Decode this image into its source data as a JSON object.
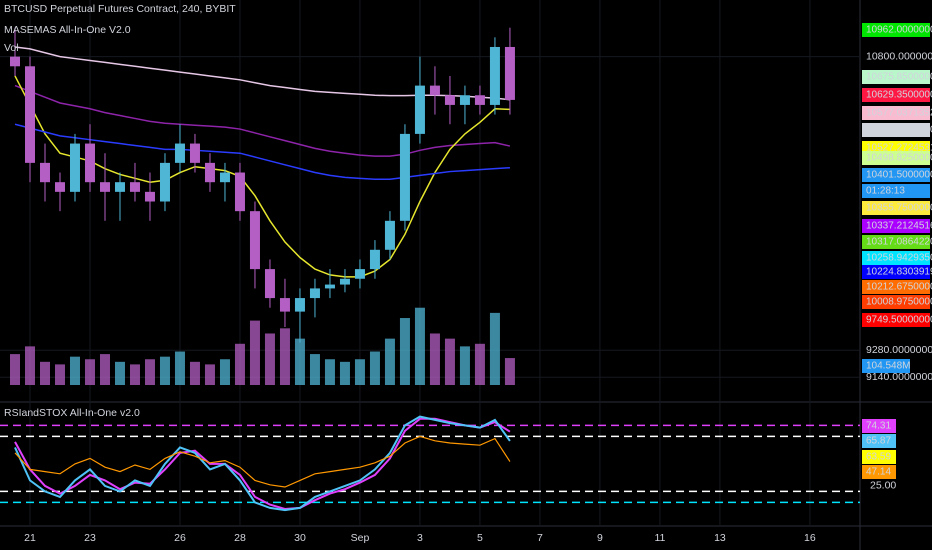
{
  "chart_data": [
    {
      "type": "candlestick",
      "title": "BTCUSD Perpetual Futures Contract, 240, BYBIT",
      "subtitle": "MASEMAS All-In-One V2.0",
      "x": [
        20.5,
        21,
        21.5,
        22,
        22.5,
        23,
        23.5,
        24,
        24.5,
        25,
        25.5,
        26,
        26.5,
        27,
        27.5,
        28,
        28.5,
        29,
        29.5,
        30,
        30.5,
        31,
        31.5,
        32,
        32.5,
        33,
        33.5,
        34,
        34.5,
        35,
        35.5,
        36,
        36.5,
        37
      ],
      "open": [
        10800,
        10750,
        10250,
        10150,
        10100,
        10350,
        10150,
        10100,
        10150,
        10100,
        10050,
        10250,
        10350,
        10250,
        10150,
        10200,
        10000,
        9700,
        9550,
        9480,
        9550,
        9600,
        9620,
        9650,
        9700,
        9800,
        9950,
        10400,
        10650,
        10600,
        10550,
        10600,
        10550,
        10850
      ],
      "high": [
        10950,
        10800,
        10350,
        10200,
        10400,
        10450,
        10300,
        10200,
        10250,
        10200,
        10300,
        10450,
        10400,
        10300,
        10250,
        10250,
        10050,
        9750,
        9650,
        9600,
        9650,
        9700,
        9700,
        9750,
        9850,
        10000,
        10450,
        10800,
        10750,
        10700,
        10650,
        10650,
        10900,
        10950
      ],
      "low": [
        10700,
        10150,
        10050,
        10000,
        10050,
        10100,
        9950,
        9950,
        10050,
        9950,
        10000,
        10200,
        10200,
        10100,
        10050,
        9950,
        9600,
        9500,
        9400,
        9320,
        9450,
        9550,
        9580,
        9600,
        9650,
        9750,
        9900,
        10350,
        10500,
        10450,
        10450,
        10500,
        10500,
        10500
      ],
      "close": [
        10750,
        10250,
        10150,
        10100,
        10350,
        10150,
        10100,
        10150,
        10100,
        10050,
        10250,
        10350,
        10250,
        10150,
        10200,
        10000,
        9700,
        9550,
        9480,
        9550,
        9600,
        9620,
        9650,
        9700,
        9800,
        9950,
        10400,
        10650,
        10600,
        10550,
        10600,
        10550,
        10850,
        10576
      ],
      "up_color": "#4fb6d6",
      "down_color": "#b45fc4",
      "series": [
        {
          "color": "#e6c7e6",
          "values": [
            10850,
            10840,
            10820,
            10800,
            10790,
            10780,
            10770,
            10760,
            10750,
            10740,
            10730,
            10720,
            10710,
            10700,
            10690,
            10680,
            10665,
            10650,
            10640,
            10630,
            10620,
            10615,
            10610,
            10605,
            10600,
            10598,
            10598,
            10600,
            10600,
            10598,
            10595,
            10590,
            10585,
            10577
          ]
        },
        {
          "color": "#8e24aa",
          "values": [
            10650,
            10620,
            10590,
            10560,
            10545,
            10530,
            10510,
            10495,
            10480,
            10465,
            10455,
            10450,
            10445,
            10440,
            10435,
            10425,
            10405,
            10385,
            10365,
            10345,
            10325,
            10310,
            10300,
            10290,
            10285,
            10285,
            10295,
            10315,
            10330,
            10340,
            10345,
            10350,
            10355,
            10337
          ]
        },
        {
          "color": "#e6e62e",
          "values": [
            10700,
            10550,
            10400,
            10300,
            10280,
            10260,
            10220,
            10190,
            10170,
            10150,
            10160,
            10200,
            10230,
            10220,
            10210,
            10180,
            10080,
            9950,
            9840,
            9760,
            9700,
            9670,
            9660,
            9660,
            9690,
            9750,
            9880,
            10050,
            10200,
            10320,
            10400,
            10460,
            10530,
            10527
          ]
        },
        {
          "color": "#2a3cff",
          "values": [
            10450,
            10430,
            10410,
            10390,
            10380,
            10370,
            10360,
            10350,
            10340,
            10330,
            10320,
            10320,
            10315,
            10310,
            10305,
            10300,
            10280,
            10260,
            10240,
            10220,
            10200,
            10185,
            10175,
            10170,
            10165,
            10165,
            10175,
            10185,
            10195,
            10205,
            10210,
            10215,
            10220,
            10225
          ]
        }
      ],
      "xlim": [
        20,
        48.67
      ],
      "xticks": [
        {
          "value": 21,
          "label": "21"
        },
        {
          "value": 23,
          "label": "23"
        },
        {
          "value": 26,
          "label": "26"
        },
        {
          "value": 28,
          "label": "28"
        },
        {
          "value": 30,
          "label": "30"
        },
        {
          "value": 32,
          "label": "Sep"
        },
        {
          "value": 34,
          "label": "3"
        },
        {
          "value": 36,
          "label": "5"
        },
        {
          "value": 38,
          "label": "7"
        },
        {
          "value": 40,
          "label": "9"
        },
        {
          "value": 42,
          "label": "11"
        },
        {
          "value": 44,
          "label": "13"
        },
        {
          "value": 47,
          "label": "16"
        }
      ],
      "ylim": [
        9100,
        11000
      ],
      "yticks": [
        {
          "value": 10800,
          "label": "10800.00000000"
        },
        {
          "value": 9280,
          "label": "9280.00000000"
        },
        {
          "value": 9140,
          "label": "9140.00000000"
        }
      ],
      "tags": [
        {
          "label": "10962.00000000",
          "color": "#00e600"
        },
        {
          "label": "10675.85000000",
          "color": "#b9f6ca"
        },
        {
          "label": "10629.35000000",
          "color": "#ff1744",
          "text_color": "#ffffff"
        },
        {
          "label": "10577.03713528",
          "color": "#f8bbd0"
        },
        {
          "label": "10575.89250000",
          "color": "#d1d4dc"
        },
        {
          "label": "10527.27245313",
          "color": "#ffff00"
        },
        {
          "label": "10498.82500000",
          "color": "#ccff90"
        },
        {
          "label": "10401.50000000",
          "color": "#2196f3",
          "text_color": "#ffffff"
        },
        {
          "label": "01:28:13",
          "color": "#2196f3",
          "text_color": "#ffffff"
        },
        {
          "label": "10355.75000000",
          "color": "#ffeb3b"
        },
        {
          "label": "10337.21245161",
          "color": "#aa00ff",
          "text_color": "#ffffff"
        },
        {
          "label": "10317.08642209",
          "color": "#64dd17"
        },
        {
          "label": "10258.94293509",
          "color": "#00e5ff"
        },
        {
          "label": "10224.83039194",
          "color": "#0000ff",
          "text_color": "#ffffff"
        },
        {
          "label": "10212.67500000",
          "color": "#ff6d00"
        },
        {
          "label": "10008.97500000",
          "color": "#ff3d00"
        },
        {
          "label": "9749.50000000",
          "color": "#ff0000",
          "text_color": "#ffffff"
        }
      ]
    },
    {
      "type": "volume",
      "title": "Vol",
      "values": [
        120,
        150,
        90,
        80,
        110,
        100,
        120,
        90,
        80,
        100,
        110,
        130,
        90,
        80,
        100,
        160,
        250,
        200,
        220,
        180,
        120,
        100,
        90,
        100,
        130,
        180,
        260,
        300,
        200,
        180,
        150,
        160,
        280,
        104.548
      ],
      "value_labels": [
        null,
        null,
        null,
        null,
        null,
        null,
        null,
        null,
        null,
        null,
        null,
        null,
        null,
        null,
        null,
        null,
        null,
        null,
        null,
        null,
        null,
        null,
        null,
        null,
        null,
        null,
        null,
        null,
        null,
        null,
        null,
        null,
        null,
        "104.548M"
      ],
      "color": "#2196f3",
      "ylim": [
        0,
        330
      ]
    },
    {
      "type": "line",
      "title": "RSIandSTOX All-In-One v2.0",
      "series": [
        {
          "color": "#e040fb",
          "values": [
            65,
            40,
            25,
            18,
            25,
            35,
            30,
            22,
            28,
            27,
            40,
            55,
            57,
            45,
            45,
            35,
            15,
            8,
            4,
            5,
            12,
            18,
            22,
            28,
            35,
            50,
            75,
            86,
            86,
            83,
            80,
            78,
            83,
            74.31
          ]
        },
        {
          "color": "#4fc3f7",
          "values": [
            60,
            30,
            20,
            15,
            30,
            40,
            25,
            20,
            30,
            25,
            45,
            60,
            55,
            40,
            45,
            30,
            10,
            5,
            3,
            5,
            15,
            20,
            25,
            30,
            40,
            55,
            80,
            88,
            85,
            82,
            80,
            78,
            85,
            65.87
          ]
        },
        {
          "color": "#ff9800",
          "values": [
            55,
            40,
            38,
            36,
            45,
            50,
            42,
            38,
            44,
            40,
            50,
            56,
            52,
            46,
            48,
            42,
            30,
            26,
            24,
            30,
            36,
            38,
            40,
            42,
            46,
            52,
            64,
            70,
            66,
            64,
            63,
            62,
            68,
            47.14
          ]
        }
      ],
      "levels": [
        {
          "value": 80,
          "color": "#e040fb"
        },
        {
          "value": 70,
          "color": "#ffffff"
        },
        {
          "value": 20,
          "color": "#ffffff"
        },
        {
          "value": 10,
          "color": "#00e5ff"
        }
      ],
      "ylim": [
        -6,
        94
      ],
      "yticks": [
        {
          "value": 25,
          "label": "25.00"
        }
      ],
      "tags": [
        {
          "label": "74.31",
          "color": "#e040fb"
        },
        {
          "label": "65.87",
          "color": "#4fc3f7"
        },
        {
          "label": "63.59",
          "color": "#ffff00"
        },
        {
          "label": "47.14",
          "color": "#ff9800"
        }
      ]
    }
  ]
}
